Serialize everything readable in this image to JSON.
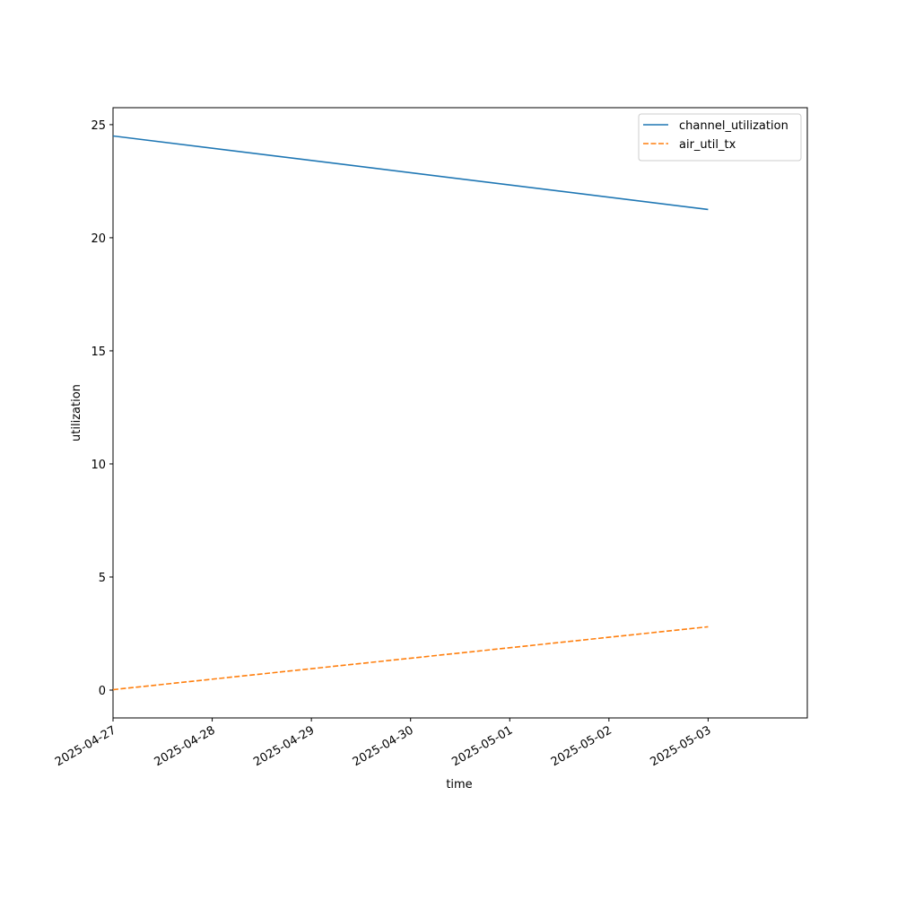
{
  "chart_data": {
    "type": "line",
    "x_label": "time",
    "y_label": "utilization",
    "x": [
      "2025-04-27",
      "2025-05-03"
    ],
    "series": [
      {
        "name": "channel_utilization",
        "color": "#1f77b4",
        "dash": "solid",
        "values": [
          24.5,
          21.25
        ]
      },
      {
        "name": "air_util_tx",
        "color": "#ff7f0e",
        "dash": "dashed",
        "values": [
          0.02,
          2.8
        ]
      }
    ],
    "xlim": [
      "2025-04-27",
      "2025-05-04"
    ],
    "xticks": [
      "2025-04-27",
      "2025-04-28",
      "2025-04-29",
      "2025-04-30",
      "2025-05-01",
      "2025-05-02",
      "2025-05-03"
    ],
    "ylim": [
      -1.23,
      25.75
    ],
    "yticks": [
      0,
      5,
      10,
      15,
      20,
      25
    ],
    "grid": false,
    "legend": "upper-right"
  }
}
